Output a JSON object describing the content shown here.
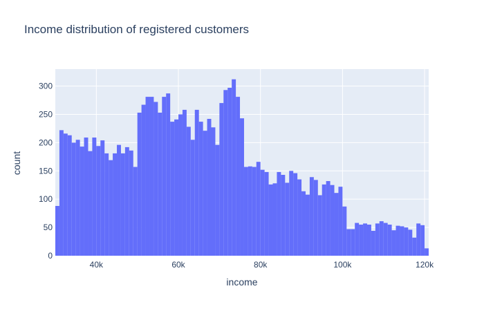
{
  "chart_data": {
    "type": "bar",
    "title": "Income distribution of registered customers",
    "xlabel": "income",
    "ylabel": "count",
    "x_range": [
      30000,
      121000
    ],
    "y_range": [
      0,
      330
    ],
    "bin_width": 1000,
    "bin_start": 30000,
    "x_ticks": [
      {
        "value": 40000,
        "label": "40k"
      },
      {
        "value": 60000,
        "label": "60k"
      },
      {
        "value": 80000,
        "label": "80k"
      },
      {
        "value": 100000,
        "label": "100k"
      },
      {
        "value": 120000,
        "label": "120k"
      }
    ],
    "y_ticks": [
      0,
      50,
      100,
      150,
      200,
      250,
      300
    ],
    "grid": true,
    "bar_color": "#636efa",
    "background_color": "#e5ecf6",
    "values": [
      88,
      222,
      216,
      213,
      200,
      205,
      193,
      209,
      185,
      209,
      194,
      204,
      181,
      169,
      181,
      196,
      181,
      192,
      186,
      157,
      253,
      267,
      281,
      281,
      272,
      253,
      281,
      287,
      237,
      241,
      250,
      258,
      228,
      205,
      258,
      237,
      221,
      242,
      227,
      196,
      270,
      293,
      297,
      312,
      281,
      243,
      157,
      158,
      157,
      166,
      152,
      148,
      126,
      128,
      148,
      143,
      129,
      150,
      146,
      135,
      114,
      108,
      139,
      134,
      107,
      126,
      132,
      125,
      111,
      122,
      87,
      47,
      47,
      58,
      55,
      57,
      55,
      44,
      57,
      61,
      58,
      55,
      45,
      53,
      52,
      50,
      46,
      32,
      57,
      54,
      13
    ]
  }
}
